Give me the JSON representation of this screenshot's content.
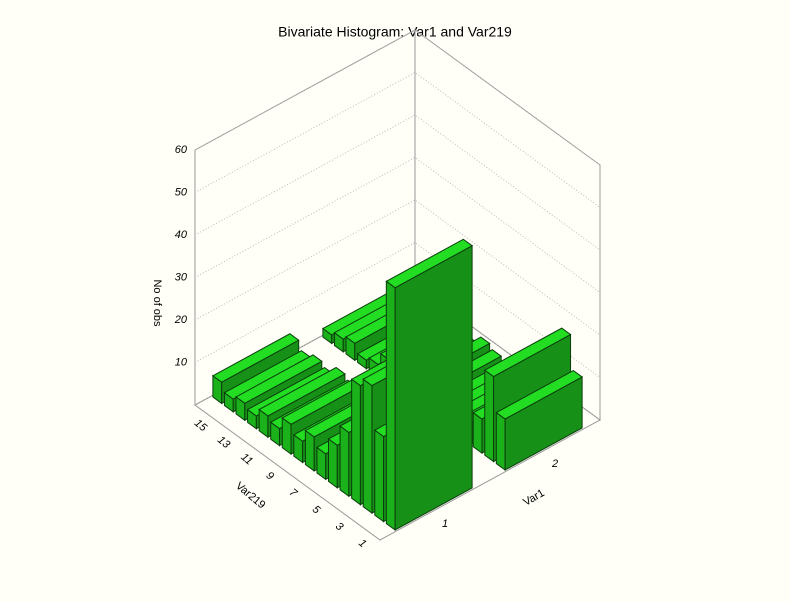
{
  "chart_data": {
    "type": "bar3d",
    "title": "Bivariate Histogram: Var1 and Var219",
    "xlabel": "Var1",
    "ylabel": "Var219",
    "zlabel": "No of obs",
    "x_categories": [
      1,
      2
    ],
    "y_categories": [
      1,
      null,
      3,
      null,
      5,
      null,
      7,
      null,
      9,
      null,
      11,
      null,
      13,
      null,
      15,
      null
    ],
    "counts": [
      [
        57,
        20,
        30,
        28,
        15,
        10,
        6,
        8,
        5,
        7,
        4,
        5,
        3,
        4,
        3,
        5
      ],
      [
        12,
        20,
        8,
        5,
        4,
        3,
        2,
        3,
        4,
        2,
        6,
        3,
        2,
        4,
        3,
        2
      ]
    ],
    "color": "#22dd22",
    "zlim": [
      0,
      60
    ],
    "zticks": [
      0,
      10,
      20,
      30,
      40,
      50,
      60
    ],
    "grid": true
  }
}
